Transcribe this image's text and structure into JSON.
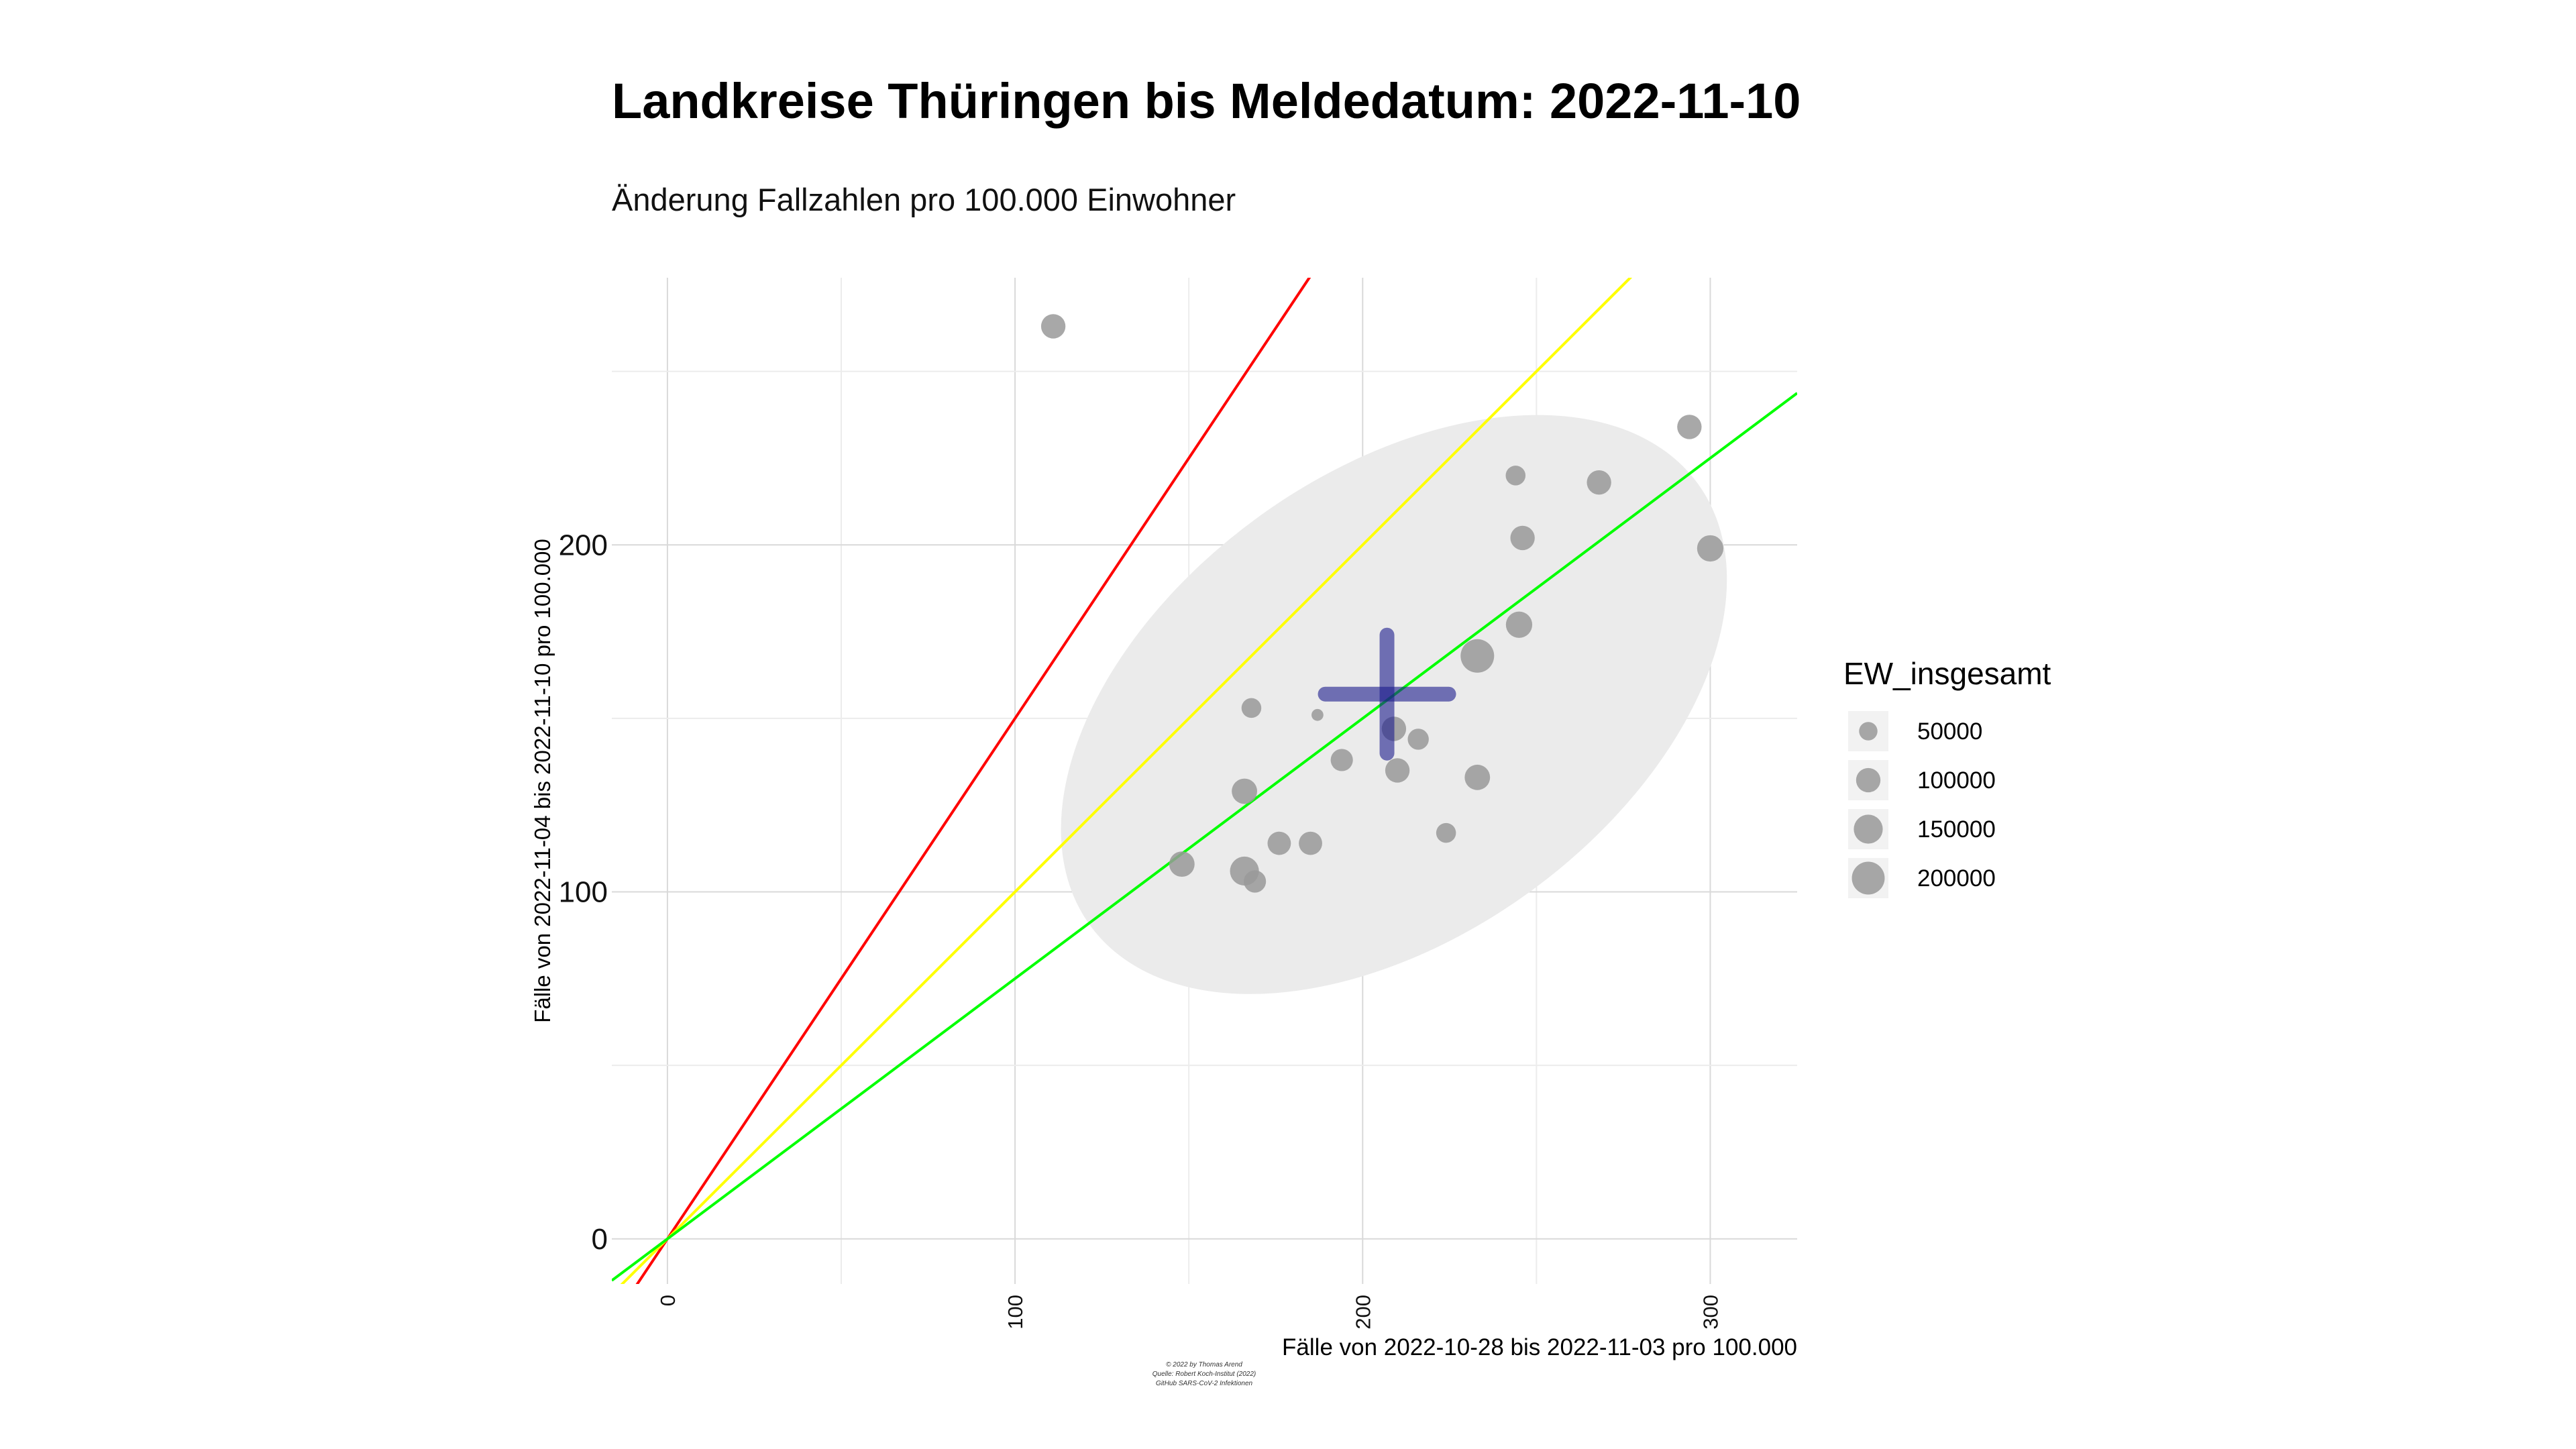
{
  "chart_data": {
    "type": "scatter",
    "title": "Landkreise Thüringen bis Meldedatum: 2022-11-10",
    "subtitle": "Änderung Fallzahlen pro 100.000 Einwohner",
    "xlabel": "Fälle von 2022-10-28 bis 2022-11-03 pro 100.000",
    "ylabel": "Fälle von 2022-11-04 bis 2022-11-10 pro 100.000",
    "xlim": [
      -16,
      325
    ],
    "ylim": [
      -13,
      277
    ],
    "x_ticks": [
      0,
      100,
      200,
      300
    ],
    "y_ticks": [
      0,
      100,
      200
    ],
    "grid": true,
    "legend": {
      "title": "EW_insgesamt",
      "position": "right",
      "entries": [
        {
          "label": "50000",
          "value": 50000
        },
        {
          "label": "100000",
          "value": 100000
        },
        {
          "label": "150000",
          "value": 150000
        },
        {
          "label": "200000",
          "value": 200000
        }
      ]
    },
    "reference_lines": [
      {
        "color": "#ff0000",
        "slope": 1.5
      },
      {
        "color": "#ffff00",
        "slope": 1.0
      },
      {
        "color": "#00ff00",
        "slope": 0.75
      }
    ],
    "ellipse": {
      "color": "#ebebeb"
    },
    "mean_cross": {
      "x": 207,
      "y": 157,
      "color": "#1a1a8c"
    },
    "points": [
      {
        "x": 111,
        "y": 263,
        "size": 100000
      },
      {
        "x": 294,
        "y": 234,
        "size": 100000
      },
      {
        "x": 244,
        "y": 220,
        "size": 60000
      },
      {
        "x": 268,
        "y": 218,
        "size": 100000
      },
      {
        "x": 246,
        "y": 202,
        "size": 100000
      },
      {
        "x": 300,
        "y": 199,
        "size": 120000
      },
      {
        "x": 245,
        "y": 177,
        "size": 120000
      },
      {
        "x": 233,
        "y": 168,
        "size": 210000
      },
      {
        "x": 168,
        "y": 153,
        "size": 60000
      },
      {
        "x": 187,
        "y": 151,
        "size": 15000
      },
      {
        "x": 209,
        "y": 147,
        "size": 100000
      },
      {
        "x": 216,
        "y": 144,
        "size": 70000
      },
      {
        "x": 194,
        "y": 138,
        "size": 80000
      },
      {
        "x": 210,
        "y": 135,
        "size": 100000
      },
      {
        "x": 233,
        "y": 133,
        "size": 110000
      },
      {
        "x": 166,
        "y": 129,
        "size": 110000
      },
      {
        "x": 224,
        "y": 117,
        "size": 60000
      },
      {
        "x": 176,
        "y": 114,
        "size": 90000
      },
      {
        "x": 185,
        "y": 114,
        "size": 90000
      },
      {
        "x": 148,
        "y": 108,
        "size": 110000
      },
      {
        "x": 166,
        "y": 106,
        "size": 150000
      },
      {
        "x": 169,
        "y": 103,
        "size": 80000
      }
    ]
  },
  "caption": {
    "line1": "© 2022 by Thomas Arend",
    "line2": "Quelle: Robert Koch-Institut (2022)",
    "line3": "GitHub SARS-CoV-2 Infektionen"
  }
}
